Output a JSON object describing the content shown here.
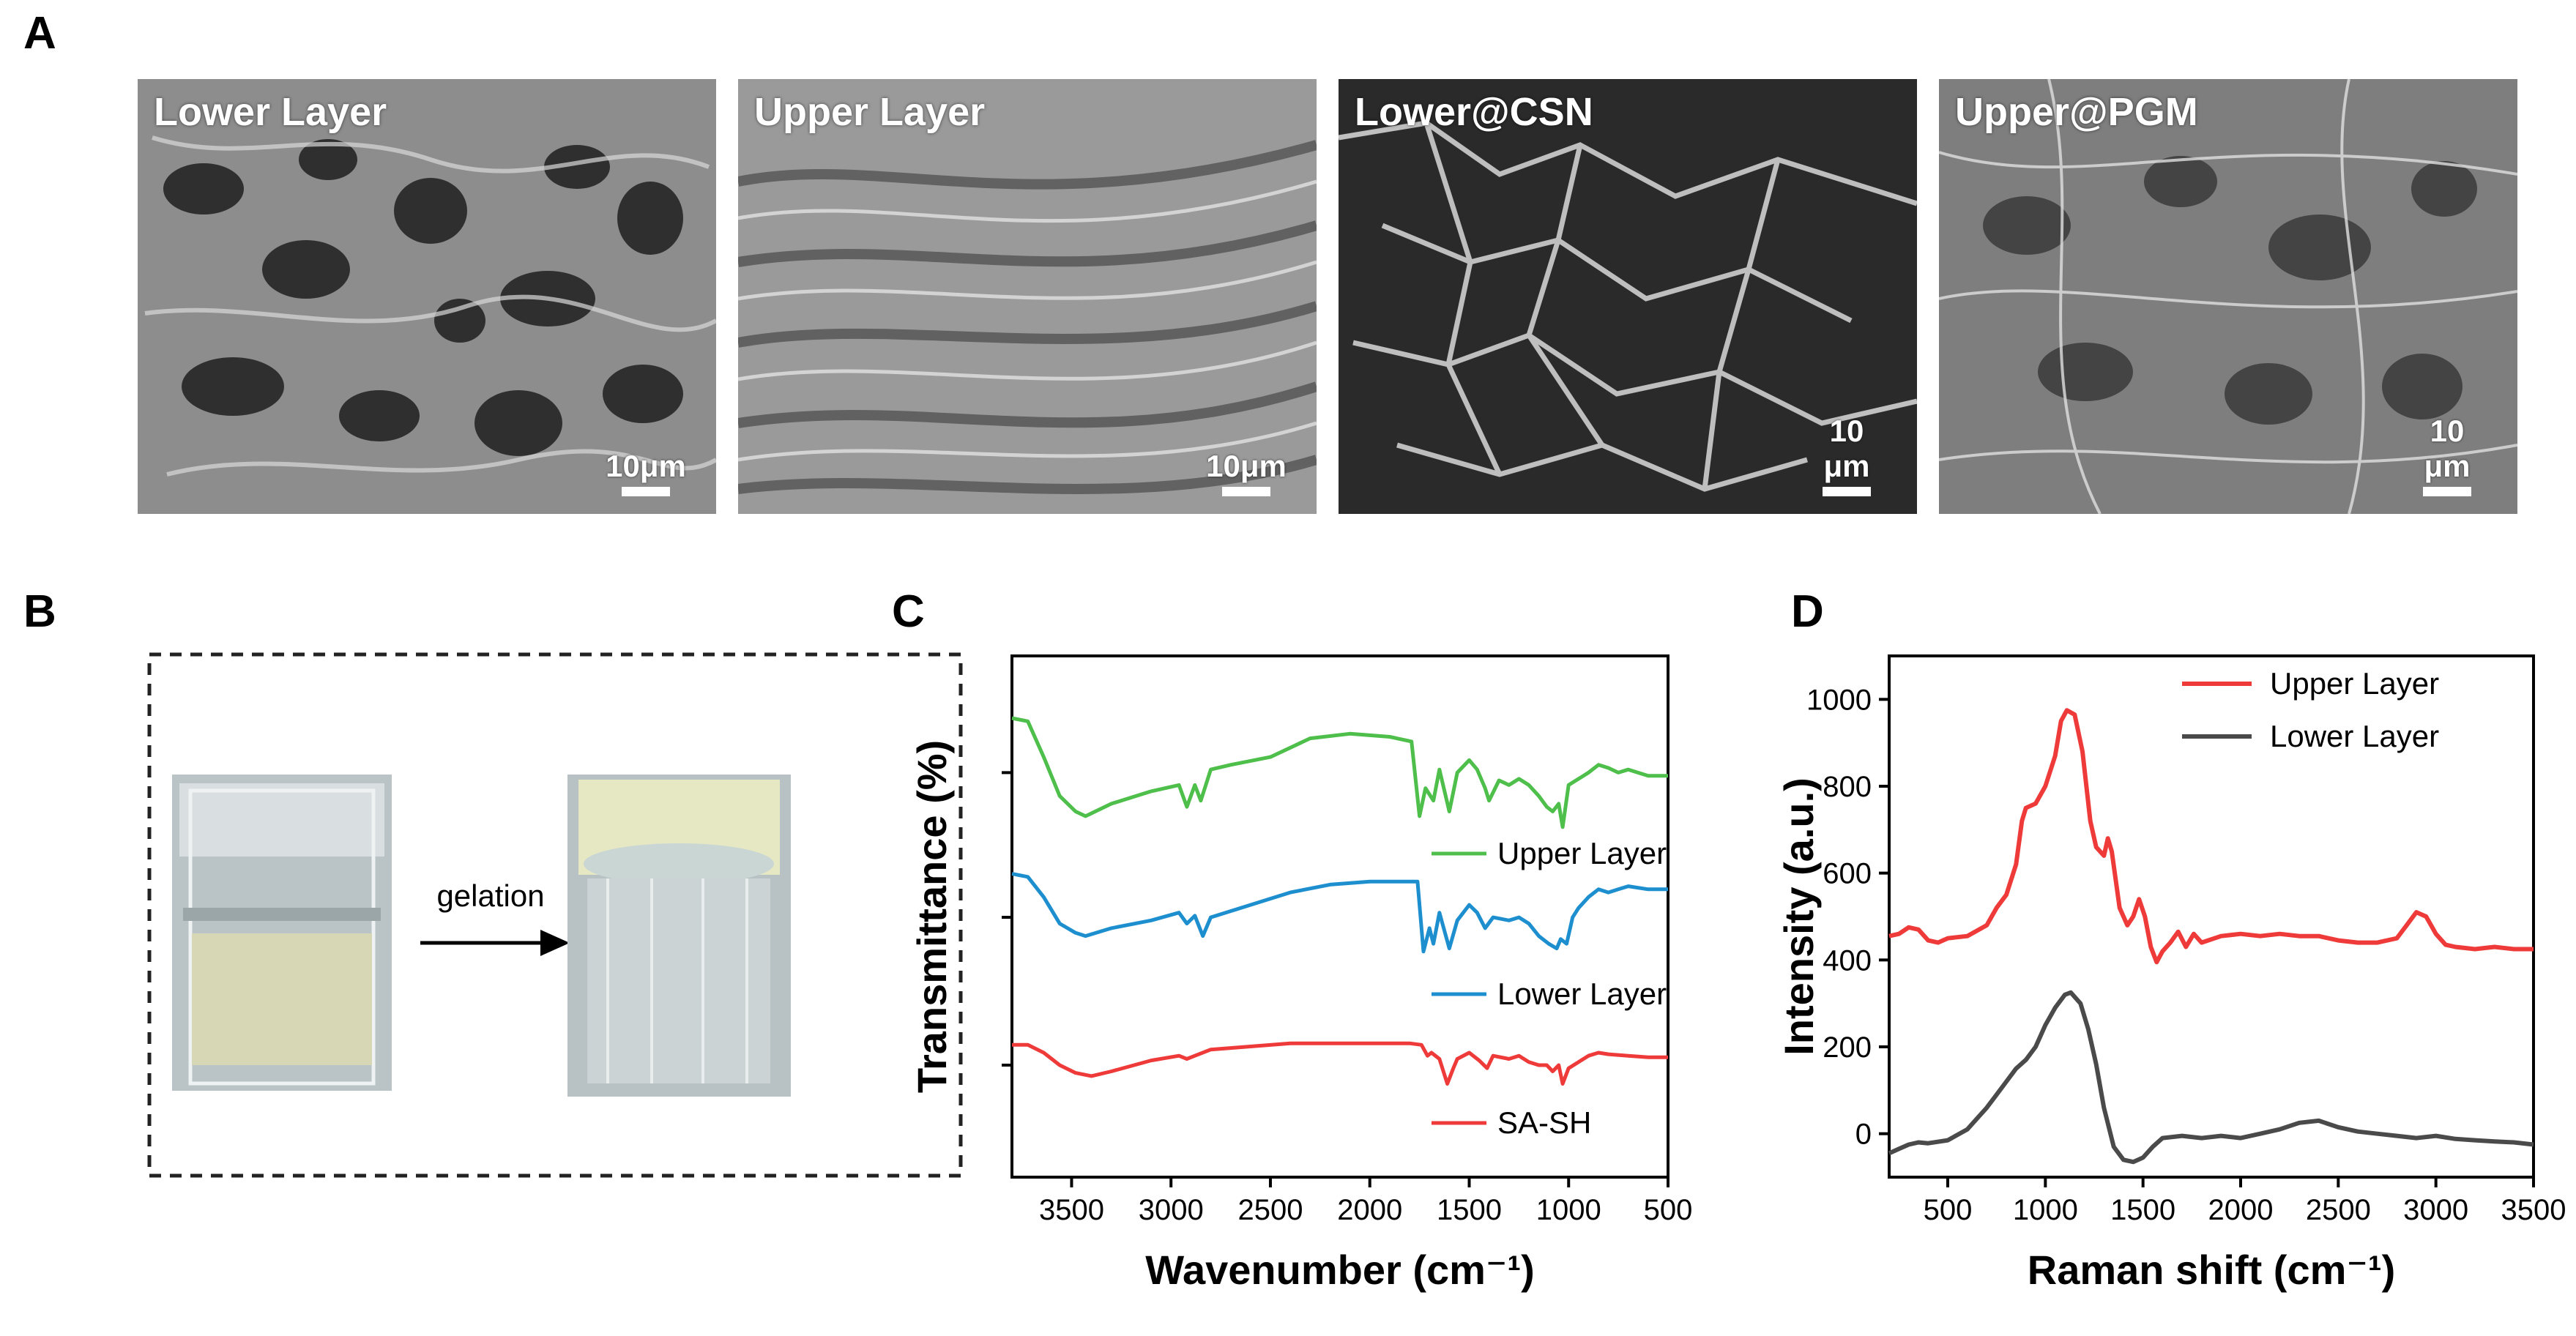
{
  "panels": {
    "a": {
      "letter": "A",
      "images": [
        {
          "title": "Lower Layer",
          "scale": "10μm"
        },
        {
          "title": "Upper Layer",
          "scale": "10μm"
        },
        {
          "title": "Lower@CSN",
          "scale": "10 μm"
        },
        {
          "title": "Upper@PGM",
          "scale": "10 μm"
        }
      ]
    },
    "b": {
      "letter": "B",
      "arrow_label": "gelation"
    },
    "c": {
      "letter": "C"
    },
    "d": {
      "letter": "D"
    }
  },
  "chart_data": [
    {
      "id": "C",
      "type": "line",
      "xlabel": "Wavenumber (cm⁻¹)",
      "ylabel": "Transmittance (%)",
      "xlim": [
        3800,
        500
      ],
      "xticks": [
        3500,
        3000,
        2500,
        2000,
        1500,
        1000,
        500
      ],
      "series": [
        {
          "name": "Upper Layer",
          "color": "#4dbf4a",
          "offset": 2.0,
          "points": [
            [
              3800,
              1.05
            ],
            [
              3720,
              1.03
            ],
            [
              3640,
              0.8
            ],
            [
              3560,
              0.55
            ],
            [
              3480,
              0.45
            ],
            [
              3430,
              0.42
            ],
            [
              3300,
              0.5
            ],
            [
              3100,
              0.58
            ],
            [
              2960,
              0.62
            ],
            [
              2920,
              0.48
            ],
            [
              2880,
              0.62
            ],
            [
              2850,
              0.52
            ],
            [
              2800,
              0.72
            ],
            [
              2700,
              0.75
            ],
            [
              2500,
              0.8
            ],
            [
              2300,
              0.92
            ],
            [
              2100,
              0.95
            ],
            [
              1900,
              0.93
            ],
            [
              1790,
              0.9
            ],
            [
              1750,
              0.42
            ],
            [
              1720,
              0.6
            ],
            [
              1680,
              0.52
            ],
            [
              1650,
              0.72
            ],
            [
              1600,
              0.45
            ],
            [
              1560,
              0.7
            ],
            [
              1500,
              0.78
            ],
            [
              1460,
              0.72
            ],
            [
              1420,
              0.6
            ],
            [
              1400,
              0.52
            ],
            [
              1350,
              0.65
            ],
            [
              1300,
              0.62
            ],
            [
              1250,
              0.66
            ],
            [
              1200,
              0.62
            ],
            [
              1150,
              0.55
            ],
            [
              1110,
              0.48
            ],
            [
              1080,
              0.45
            ],
            [
              1050,
              0.5
            ],
            [
              1030,
              0.35
            ],
            [
              1000,
              0.62
            ],
            [
              950,
              0.66
            ],
            [
              900,
              0.7
            ],
            [
              850,
              0.75
            ],
            [
              800,
              0.73
            ],
            [
              750,
              0.7
            ],
            [
              700,
              0.72
            ],
            [
              600,
              0.68
            ],
            [
              500,
              0.68
            ]
          ]
        },
        {
          "name": "Lower Layer",
          "color": "#1d8fcf",
          "offset": 1.0,
          "points": [
            [
              3800,
              1.0
            ],
            [
              3720,
              0.98
            ],
            [
              3640,
              0.85
            ],
            [
              3560,
              0.68
            ],
            [
              3480,
              0.62
            ],
            [
              3430,
              0.6
            ],
            [
              3300,
              0.65
            ],
            [
              3100,
              0.7
            ],
            [
              2960,
              0.75
            ],
            [
              2920,
              0.68
            ],
            [
              2880,
              0.73
            ],
            [
              2840,
              0.6
            ],
            [
              2800,
              0.72
            ],
            [
              2600,
              0.8
            ],
            [
              2400,
              0.88
            ],
            [
              2200,
              0.93
            ],
            [
              2000,
              0.95
            ],
            [
              1800,
              0.95
            ],
            [
              1760,
              0.95
            ],
            [
              1730,
              0.5
            ],
            [
              1700,
              0.65
            ],
            [
              1680,
              0.55
            ],
            [
              1650,
              0.75
            ],
            [
              1600,
              0.52
            ],
            [
              1560,
              0.7
            ],
            [
              1500,
              0.8
            ],
            [
              1460,
              0.75
            ],
            [
              1420,
              0.65
            ],
            [
              1380,
              0.72
            ],
            [
              1300,
              0.7
            ],
            [
              1250,
              0.72
            ],
            [
              1200,
              0.68
            ],
            [
              1150,
              0.6
            ],
            [
              1100,
              0.55
            ],
            [
              1060,
              0.52
            ],
            [
              1040,
              0.58
            ],
            [
              1010,
              0.55
            ],
            [
              980,
              0.72
            ],
            [
              950,
              0.78
            ],
            [
              900,
              0.85
            ],
            [
              850,
              0.9
            ],
            [
              800,
              0.88
            ],
            [
              750,
              0.9
            ],
            [
              700,
              0.92
            ],
            [
              600,
              0.9
            ],
            [
              500,
              0.9
            ]
          ]
        },
        {
          "name": "SA-SH",
          "color": "#ef3a3a",
          "offset": 0.0,
          "points": [
            [
              3800,
              0.85
            ],
            [
              3720,
              0.85
            ],
            [
              3640,
              0.8
            ],
            [
              3560,
              0.72
            ],
            [
              3480,
              0.67
            ],
            [
              3400,
              0.65
            ],
            [
              3300,
              0.68
            ],
            [
              3100,
              0.75
            ],
            [
              2960,
              0.78
            ],
            [
              2920,
              0.76
            ],
            [
              2880,
              0.78
            ],
            [
              2800,
              0.82
            ],
            [
              2600,
              0.84
            ],
            [
              2400,
              0.86
            ],
            [
              2200,
              0.86
            ],
            [
              2000,
              0.86
            ],
            [
              1800,
              0.86
            ],
            [
              1740,
              0.85
            ],
            [
              1710,
              0.78
            ],
            [
              1690,
              0.8
            ],
            [
              1650,
              0.76
            ],
            [
              1610,
              0.6
            ],
            [
              1580,
              0.7
            ],
            [
              1560,
              0.76
            ],
            [
              1500,
              0.8
            ],
            [
              1450,
              0.75
            ],
            [
              1410,
              0.7
            ],
            [
              1380,
              0.78
            ],
            [
              1300,
              0.76
            ],
            [
              1250,
              0.78
            ],
            [
              1200,
              0.74
            ],
            [
              1150,
              0.72
            ],
            [
              1110,
              0.72
            ],
            [
              1080,
              0.68
            ],
            [
              1050,
              0.72
            ],
            [
              1030,
              0.6
            ],
            [
              1000,
              0.7
            ],
            [
              950,
              0.74
            ],
            [
              900,
              0.78
            ],
            [
              850,
              0.8
            ],
            [
              800,
              0.79
            ],
            [
              700,
              0.78
            ],
            [
              600,
              0.77
            ],
            [
              500,
              0.77
            ]
          ]
        }
      ]
    },
    {
      "id": "D",
      "type": "line",
      "xlabel": "Raman shift (cm⁻¹)",
      "ylabel": "Intensity (a.u.)",
      "xlim": [
        200,
        3500
      ],
      "ylim": [
        -100,
        1100
      ],
      "xticks": [
        500,
        1000,
        1500,
        2000,
        2500,
        3000,
        3500
      ],
      "yticks": [
        0,
        200,
        400,
        600,
        800,
        1000
      ],
      "series": [
        {
          "name": "Upper Layer",
          "color": "#ef3a3a",
          "points": [
            [
              200,
              455
            ],
            [
              250,
              460
            ],
            [
              300,
              475
            ],
            [
              350,
              470
            ],
            [
              400,
              445
            ],
            [
              450,
              440
            ],
            [
              500,
              450
            ],
            [
              600,
              455
            ],
            [
              700,
              480
            ],
            [
              750,
              520
            ],
            [
              800,
              550
            ],
            [
              850,
              620
            ],
            [
              880,
              720
            ],
            [
              900,
              750
            ],
            [
              950,
              760
            ],
            [
              1000,
              800
            ],
            [
              1050,
              870
            ],
            [
              1080,
              950
            ],
            [
              1110,
              975
            ],
            [
              1150,
              965
            ],
            [
              1190,
              880
            ],
            [
              1230,
              720
            ],
            [
              1260,
              660
            ],
            [
              1300,
              640
            ],
            [
              1320,
              680
            ],
            [
              1340,
              650
            ],
            [
              1380,
              520
            ],
            [
              1420,
              480
            ],
            [
              1450,
              500
            ],
            [
              1480,
              540
            ],
            [
              1510,
              500
            ],
            [
              1540,
              430
            ],
            [
              1570,
              395
            ],
            [
              1600,
              420
            ],
            [
              1640,
              440
            ],
            [
              1680,
              465
            ],
            [
              1720,
              430
            ],
            [
              1760,
              460
            ],
            [
              1800,
              440
            ],
            [
              1900,
              455
            ],
            [
              2000,
              460
            ],
            [
              2100,
              455
            ],
            [
              2200,
              460
            ],
            [
              2300,
              455
            ],
            [
              2400,
              455
            ],
            [
              2500,
              445
            ],
            [
              2600,
              440
            ],
            [
              2700,
              440
            ],
            [
              2800,
              450
            ],
            [
              2850,
              480
            ],
            [
              2900,
              510
            ],
            [
              2950,
              500
            ],
            [
              3000,
              460
            ],
            [
              3050,
              435
            ],
            [
              3100,
              430
            ],
            [
              3200,
              425
            ],
            [
              3300,
              430
            ],
            [
              3400,
              425
            ],
            [
              3500,
              425
            ]
          ]
        },
        {
          "name": "Lower Layer",
          "color": "#4a4a4a",
          "points": [
            [
              200,
              -45
            ],
            [
              250,
              -35
            ],
            [
              300,
              -25
            ],
            [
              350,
              -20
            ],
            [
              400,
              -22
            ],
            [
              500,
              -15
            ],
            [
              600,
              10
            ],
            [
              700,
              60
            ],
            [
              750,
              90
            ],
            [
              800,
              120
            ],
            [
              850,
              150
            ],
            [
              900,
              170
            ],
            [
              950,
              200
            ],
            [
              1000,
              250
            ],
            [
              1050,
              290
            ],
            [
              1100,
              320
            ],
            [
              1130,
              325
            ],
            [
              1180,
              300
            ],
            [
              1220,
              240
            ],
            [
              1260,
              160
            ],
            [
              1300,
              60
            ],
            [
              1350,
              -30
            ],
            [
              1400,
              -60
            ],
            [
              1450,
              -65
            ],
            [
              1500,
              -55
            ],
            [
              1550,
              -30
            ],
            [
              1600,
              -10
            ],
            [
              1700,
              -5
            ],
            [
              1800,
              -10
            ],
            [
              1900,
              -5
            ],
            [
              2000,
              -10
            ],
            [
              2100,
              0
            ],
            [
              2200,
              10
            ],
            [
              2300,
              25
            ],
            [
              2400,
              30
            ],
            [
              2500,
              15
            ],
            [
              2600,
              5
            ],
            [
              2700,
              0
            ],
            [
              2800,
              -5
            ],
            [
              2900,
              -10
            ],
            [
              3000,
              -5
            ],
            [
              3100,
              -12
            ],
            [
              3200,
              -15
            ],
            [
              3300,
              -18
            ],
            [
              3400,
              -20
            ],
            [
              3500,
              -25
            ]
          ]
        }
      ]
    }
  ]
}
